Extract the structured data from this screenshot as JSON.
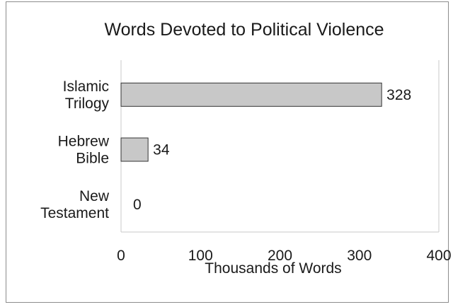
{
  "chart_data": {
    "type": "bar",
    "orientation": "horizontal",
    "title": "Words Devoted to Political Violence",
    "xlabel": "Thousands of Words",
    "ylabel": "",
    "categories": [
      [
        "Islamic",
        "Trilogy"
      ],
      [
        "Hebrew",
        "Bible"
      ],
      [
        "New",
        "Testament"
      ]
    ],
    "values": [
      328,
      34,
      0
    ],
    "data_labels": [
      "328",
      "34",
      "0"
    ],
    "xlim": [
      0,
      400
    ],
    "xticks": [
      "0",
      "100",
      "200",
      "300",
      "400"
    ],
    "grid": false,
    "legend": "none",
    "colors": {
      "bar_fill": "#c8c8c8",
      "bar_stroke": "#333333",
      "axis": "#c8c8c8"
    }
  }
}
